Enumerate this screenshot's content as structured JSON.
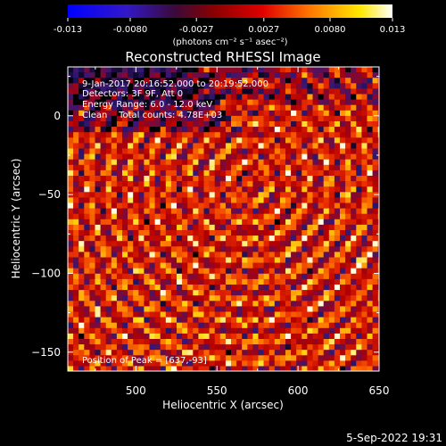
{
  "colorbar": {
    "tick_labels": [
      "-0.013",
      "-0.0080",
      "-0.0027",
      "0.0027",
      "0.0080",
      "0.013"
    ],
    "tick_values": [
      -0.013,
      -0.008,
      -0.0027,
      0.0027,
      0.008,
      0.013
    ],
    "unit_label": "(photons cm⁻² s⁻¹ asec⁻²)",
    "range": [
      -0.013,
      0.013
    ]
  },
  "chart_data": {
    "type": "heatmap",
    "title": "Reconstructed RHESSI Image",
    "xlabel": "Heliocentric X (arcsec)",
    "ylabel": "Heliocentric Y (arcsec)",
    "xlim": [
      458,
      650
    ],
    "ylim": [
      -162,
      31
    ],
    "x_ticks": [
      500,
      550,
      600,
      650
    ],
    "y_ticks": [
      -150,
      -100,
      -50,
      0
    ],
    "x_tick_labels": [
      "500",
      "550",
      "600",
      "650"
    ],
    "y_tick_labels": [
      "−150",
      "−100",
      "−50",
      "0"
    ],
    "colormap": "black-purple-blue-red-orange-yellow-white (RHESSI std)",
    "annotations": [
      "9-Jan-2017 20:16:52.000 to 20:19:52.000",
      "Detectors: 3F 9F, Att 0",
      "Energy Range: 6.0 - 12.0 keV",
      "Clean    Total counts: 4.78E+03"
    ],
    "peak_label": "Position of Peak = [637,-93]",
    "peak_position": [
      637,
      -93
    ]
  },
  "footer": {
    "timestamp": "5-Sep-2022 19:31"
  }
}
